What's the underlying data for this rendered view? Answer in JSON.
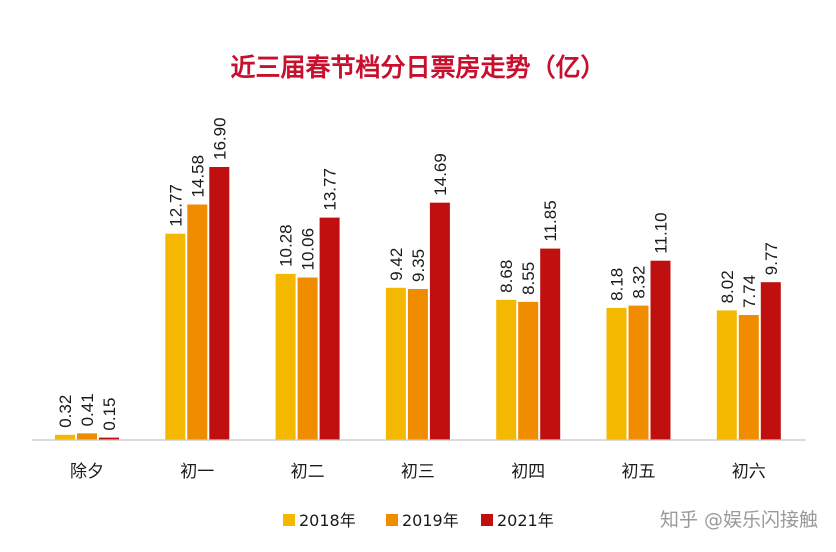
{
  "chart_data": {
    "type": "bar",
    "title": "近三届春节档分日票房走势（亿）",
    "categories": [
      "除夕",
      "初一",
      "初二",
      "初三",
      "初四",
      "初五",
      "初六"
    ],
    "series": [
      {
        "name": "2018年",
        "color": "#f5b800",
        "values": [
          0.32,
          12.77,
          10.28,
          9.42,
          8.68,
          8.18,
          8.02
        ],
        "labels": [
          "0.32",
          "12.77",
          "10.28",
          "9.42",
          "8.68",
          "8.18",
          "8.02"
        ]
      },
      {
        "name": "2019年",
        "color": "#f08c00",
        "values": [
          0.41,
          14.58,
          10.06,
          9.35,
          8.55,
          8.32,
          7.74
        ],
        "labels": [
          "0.41",
          "14.58",
          "10.06",
          "9.35",
          "8.55",
          "8.32",
          "7.74"
        ]
      },
      {
        "name": "2021年",
        "color": "#c00f0f",
        "values": [
          0.15,
          16.9,
          13.77,
          14.69,
          11.85,
          11.1,
          9.77
        ],
        "labels": [
          "0.15",
          "16.90",
          "13.77",
          "14.69",
          "11.85",
          "11.10",
          "9.77"
        ]
      }
    ],
    "ylim": [
      0,
      16.9
    ],
    "xlabel": "",
    "ylabel": "",
    "grid": false,
    "legend": "bottom"
  },
  "watermark": {
    "text": "知乎 @娱乐闪接触"
  }
}
